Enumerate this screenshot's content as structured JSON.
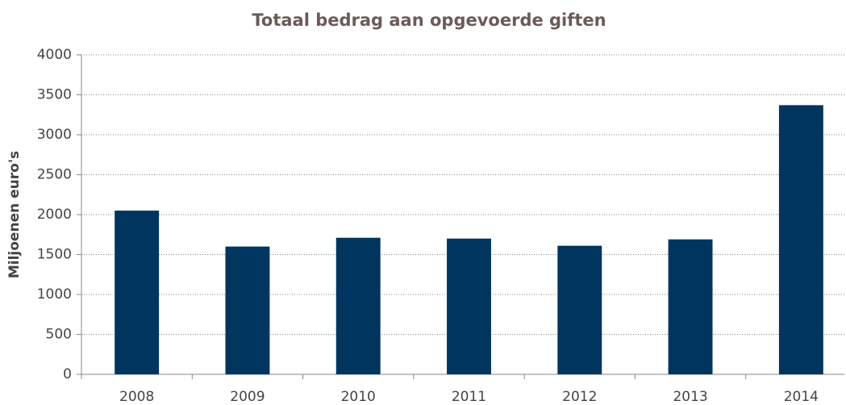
{
  "chart_data": {
    "type": "bar",
    "title": "Totaal bedrag aan opgevoerde giften",
    "ylabel": "Miljoenen euro's",
    "categories": [
      "2008",
      "2009",
      "2010",
      "2011",
      "2012",
      "2013",
      "2014"
    ],
    "values": [
      2050,
      1600,
      1710,
      1700,
      1610,
      1690,
      3370
    ],
    "color": "#003560",
    "ylim": [
      0,
      4000
    ],
    "yticks": [
      0,
      500,
      1000,
      1500,
      2000,
      2500,
      3000,
      3500,
      4000
    ],
    "grid": true
  }
}
